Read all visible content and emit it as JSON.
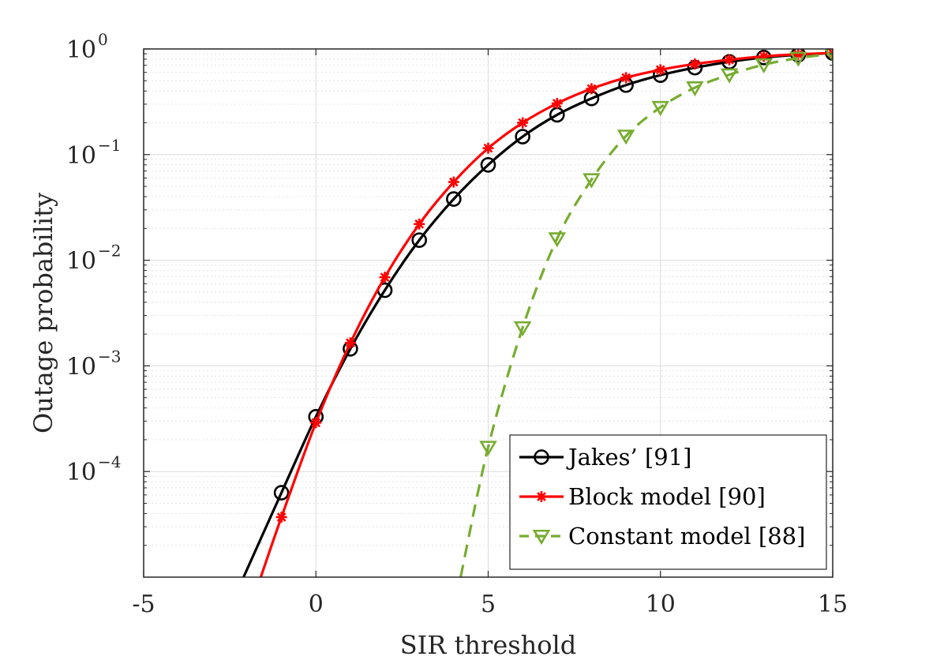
{
  "chart_data": {
    "type": "line",
    "title": "",
    "xlabel": "SIR threshold",
    "ylabel": "Outage probability",
    "xlim": [
      -5,
      15
    ],
    "ylim_log10": [
      -5.0,
      0.0
    ],
    "yscale": "log",
    "grid": true,
    "minor_grid": true,
    "x_ticks": [
      -5,
      0,
      5,
      10,
      15
    ],
    "x_tick_labels": [
      "-5",
      "0",
      "5",
      "10",
      "15"
    ],
    "y_ticks": [
      {
        "base": "10",
        "exp": "0",
        "value": 1
      },
      {
        "base": "10",
        "exp": "−1",
        "value": 0.1
      },
      {
        "base": "10",
        "exp": "−2",
        "value": 0.01
      },
      {
        "base": "10",
        "exp": "−3",
        "value": 0.001
      },
      {
        "base": "10",
        "exp": "−4",
        "value": 0.0001
      }
    ],
    "legend_position": "bottom-right",
    "series": [
      {
        "name": "Jakes’ [91]",
        "color": "#000000",
        "line_style": "solid",
        "marker": "circle",
        "x": [
          -2.1,
          -1,
          0,
          1,
          2,
          3,
          4,
          5,
          6,
          7,
          8,
          9,
          10,
          11,
          12,
          13,
          14,
          15
        ],
        "values": [
          1e-05,
          6.3e-05,
          0.00033,
          0.00145,
          0.0052,
          0.0155,
          0.038,
          0.08,
          0.148,
          0.238,
          0.34,
          0.455,
          0.565,
          0.665,
          0.755,
          0.83,
          0.88,
          0.915
        ],
        "marker_x": [
          -1,
          0,
          1,
          2,
          3,
          4,
          5,
          6,
          7,
          8,
          9,
          10,
          11,
          12,
          13,
          14,
          15
        ]
      },
      {
        "name": "Block model [90]",
        "color": "#ff0000",
        "line_style": "solid",
        "marker": "asterisk",
        "x": [
          -1.6,
          -1,
          0,
          1,
          2,
          3,
          4,
          5,
          6,
          7,
          8,
          9,
          10,
          11,
          12,
          13,
          14,
          15
        ],
        "values": [
          1e-05,
          3.7e-05,
          0.00029,
          0.00165,
          0.0069,
          0.022,
          0.055,
          0.115,
          0.2,
          0.305,
          0.42,
          0.535,
          0.635,
          0.72,
          0.79,
          0.85,
          0.89,
          0.915
        ],
        "marker_x": [
          -1,
          0,
          1,
          2,
          3,
          4,
          5,
          6,
          7,
          8,
          9,
          10,
          11,
          12,
          13,
          14,
          15
        ]
      },
      {
        "name": "Constant model [88]",
        "color": "#77ac30",
        "line_style": "dashed",
        "marker": "triangle-down",
        "x": [
          4.2,
          5,
          6,
          7,
          8,
          9,
          10,
          11,
          12,
          13,
          14,
          15
        ],
        "values": [
          1e-05,
          0.00017,
          0.0023,
          0.016,
          0.058,
          0.15,
          0.28,
          0.43,
          0.57,
          0.71,
          0.82,
          0.9
        ],
        "marker_x": [
          5,
          6,
          7,
          8,
          9,
          10,
          11,
          12,
          13,
          14,
          15
        ]
      }
    ]
  }
}
